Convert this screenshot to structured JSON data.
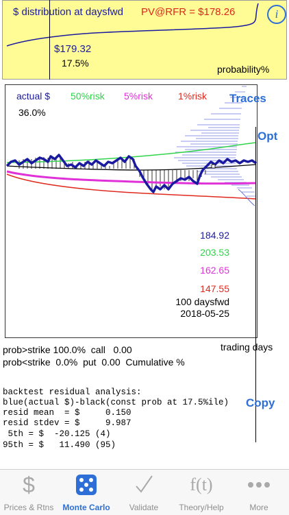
{
  "top_panel": {
    "title": "$ distribution at daysfwd",
    "pv_label": "PV@RFR = $178.26",
    "value": "$179.32",
    "percentile": "17.5%",
    "axis_label": "probability%",
    "info_icon": "info-icon"
  },
  "main_panel": {
    "legend": {
      "actual": "actual $",
      "risk50": "50%risk",
      "risk5": "5%risk",
      "risk1": "1%risk"
    },
    "percent": "36.0%",
    "traces_label": "Traces",
    "opt_label": "Opt",
    "values": {
      "blue": "184.92",
      "green": "203.53",
      "magenta": "162.65",
      "red": "147.55",
      "daysfwd": "100 daysfwd",
      "date": "2018-05-25"
    },
    "x_axis_label": "trading days"
  },
  "info": {
    "line1": "prob>strike 100.0%  call   0.00",
    "line2": "prob<strike  0.0%  put  0.00  Cumulative %"
  },
  "backtest": {
    "line1": "backtest residual analysis:",
    "line2": "blue(actual $)-black(const prob at 17.5%ile)",
    "line3": "resid mean  = $     0.150",
    "line4": "resid stdev = $     9.987",
    "line5": " 5th = $  -20.125 (4)",
    "line6": "95th = $   11.490 (95)",
    "copy_label": "Copy"
  },
  "colors": {
    "blue": "#1a1aa0",
    "green": "#2fd44a",
    "magenta": "#e030d8",
    "red": "#e0281c",
    "accent": "#2d6fd6",
    "panel_yellow": "#fffb95"
  },
  "tabs": [
    {
      "label": "Prices & Rtns",
      "icon": "dollar-icon"
    },
    {
      "label": "Monte Carlo",
      "icon": "dice-icon",
      "active": true
    },
    {
      "label": "Validate",
      "icon": "checkmark-icon"
    },
    {
      "label": "Theory/Help",
      "icon": "function-icon"
    },
    {
      "label": "More",
      "icon": "more-dots-icon"
    }
  ]
}
